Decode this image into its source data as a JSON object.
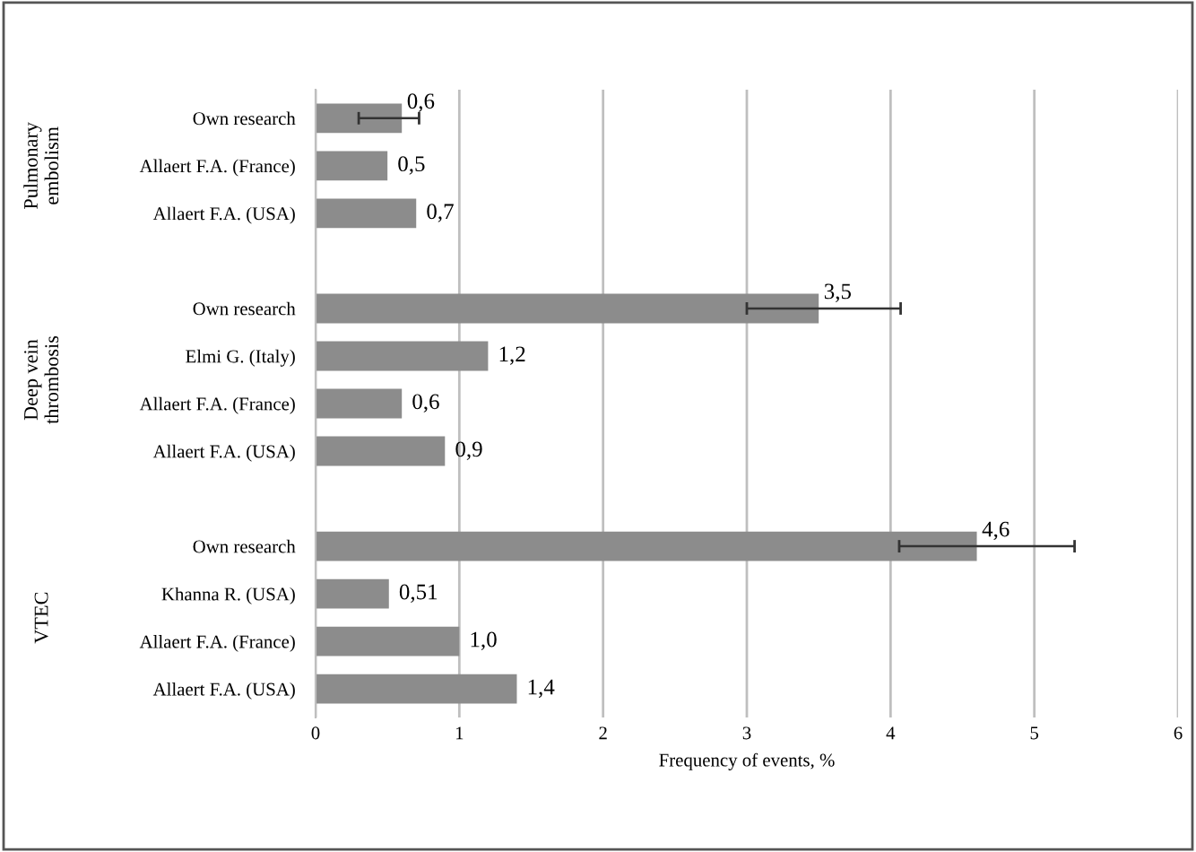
{
  "chart_data": {
    "type": "bar",
    "orientation": "horizontal",
    "xlabel": "Frequency of events, %",
    "categories": [
      "Own research",
      "Allaert F.A. (France)",
      "Allaert F.A. (USA)",
      null,
      "Own research",
      "Elmi G. (Italy)",
      "Allaert F.A. (France)",
      "Allaert F.A. (USA)",
      null,
      "Own research",
      "Khanna R. (USA)",
      "Allaert F.A. (France)",
      "Allaert F.A. (USA)"
    ],
    "values": [
      0.6,
      0.5,
      0.7,
      null,
      3.5,
      1.2,
      0.6,
      0.9,
      null,
      4.6,
      0.51,
      1.0,
      1.4
    ],
    "value_labels": [
      "0,6",
      "0,5",
      "0,7",
      null,
      "3,5",
      "1,2",
      "0,6",
      "0,9",
      null,
      "4,6",
      "0,51",
      "1,0",
      "1,4"
    ],
    "errors": [
      [
        0.3,
        0.72
      ],
      null,
      null,
      null,
      [
        3.0,
        4.07
      ],
      null,
      null,
      null,
      null,
      [
        4.06,
        5.28
      ],
      null,
      null,
      null
    ],
    "color": "#8c8c8c",
    "annotations": [
      "Pulmonary\nembolism",
      "Deep vein\nthrombosis",
      "VTEC"
    ],
    "xlim": [
      0,
      6
    ],
    "xticks": [
      0,
      1,
      2,
      3,
      4,
      5,
      6
    ],
    "grid": "x"
  }
}
